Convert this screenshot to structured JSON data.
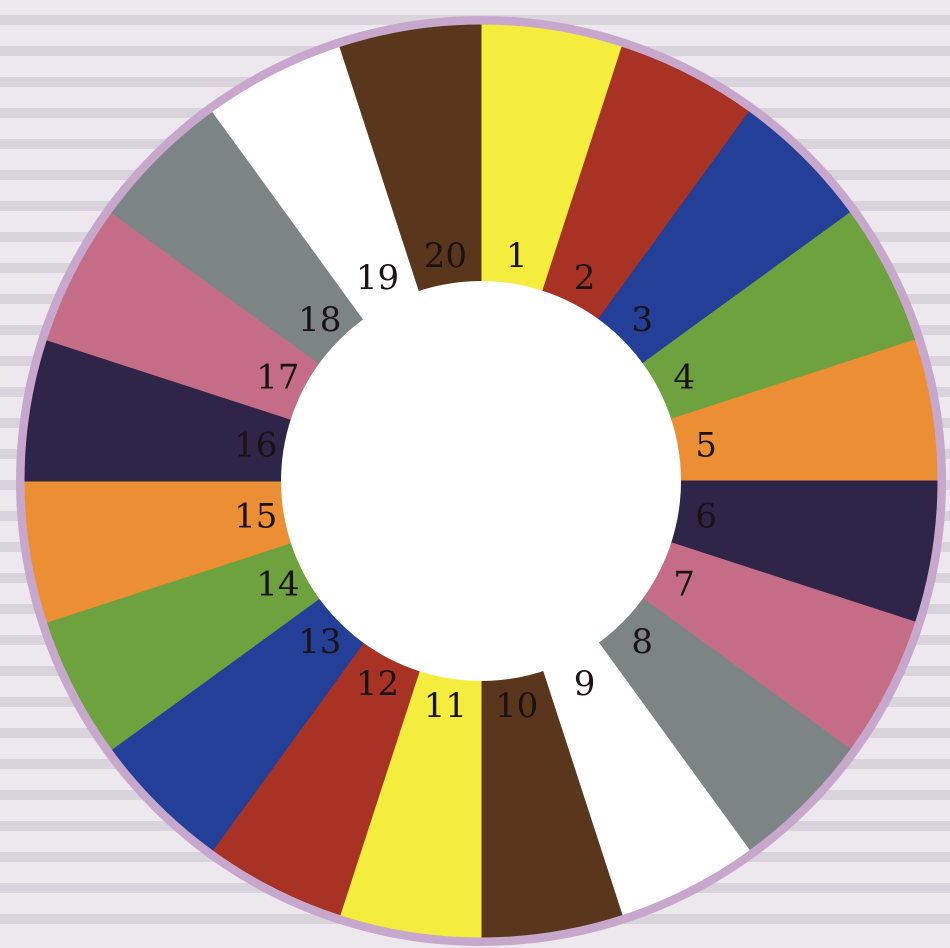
{
  "wheel": {
    "rim_color": "#c7a8cc",
    "hole_color": "#ffffff",
    "background_color": "#ece8ee",
    "segments": [
      {
        "label": "1",
        "color": "#f5ed3d"
      },
      {
        "label": "2",
        "color": "#a83224"
      },
      {
        "label": "3",
        "color": "#243f98"
      },
      {
        "label": "4",
        "color": "#6ea23e"
      },
      {
        "label": "5",
        "color": "#ec8f34"
      },
      {
        "label": "6",
        "color": "#2f2548"
      },
      {
        "label": "7",
        "color": "#c56d86"
      },
      {
        "label": "8",
        "color": "#7d8486"
      },
      {
        "label": "9",
        "color": "#ffffff"
      },
      {
        "label": "10",
        "color": "#5a371c"
      },
      {
        "label": "11",
        "color": "#f5ed3d"
      },
      {
        "label": "12",
        "color": "#a83224"
      },
      {
        "label": "13",
        "color": "#243f98"
      },
      {
        "label": "14",
        "color": "#6ea23e"
      },
      {
        "label": "15",
        "color": "#ec8f34"
      },
      {
        "label": "16",
        "color": "#2f2548"
      },
      {
        "label": "17",
        "color": "#c56d86"
      },
      {
        "label": "18",
        "color": "#7d8486"
      },
      {
        "label": "19",
        "color": "#ffffff"
      },
      {
        "label": "20",
        "color": "#5a371c"
      }
    ]
  }
}
